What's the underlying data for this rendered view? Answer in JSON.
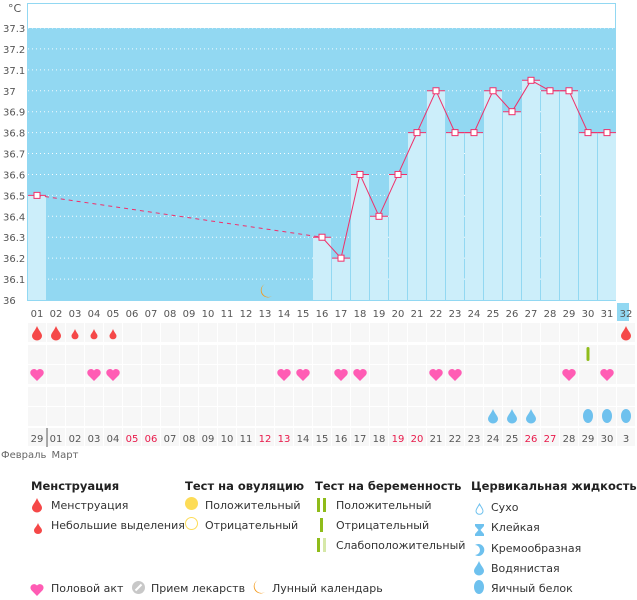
{
  "chart_data": {
    "type": "bar",
    "unit_label": "°C",
    "ylim": [
      36,
      37.3
    ],
    "yticks": [
      "36",
      "36.1",
      "36.2",
      "36.3",
      "36.4",
      "36.5",
      "36.6",
      "36.7",
      "36.8",
      "36.9",
      "37",
      "37.1",
      "37.2",
      "37.3"
    ],
    "cycle_days": [
      "01",
      "02",
      "03",
      "04",
      "05",
      "06",
      "07",
      "08",
      "09",
      "10",
      "11",
      "12",
      "13",
      "14",
      "15",
      "16",
      "17",
      "18",
      "19",
      "20",
      "21",
      "22",
      "23",
      "24",
      "25",
      "26",
      "27",
      "28",
      "29",
      "30",
      "31",
      "32"
    ],
    "temperatures": [
      36.5,
      null,
      null,
      null,
      null,
      null,
      null,
      null,
      null,
      null,
      null,
      null,
      null,
      null,
      null,
      36.3,
      36.2,
      36.6,
      36.4,
      36.6,
      36.8,
      37.0,
      36.8,
      36.8,
      37.0,
      36.9,
      37.05,
      37.0,
      37.0,
      36.8,
      36.8,
      null
    ],
    "calendar_dates": [
      "29",
      "01",
      "02",
      "03",
      "04",
      "05",
      "06",
      "07",
      "08",
      "09",
      "10",
      "11",
      "12",
      "13",
      "14",
      "15",
      "16",
      "17",
      "18",
      "19",
      "20",
      "21",
      "22",
      "23",
      "24",
      "25",
      "26",
      "27",
      "28",
      "29",
      "30",
      "3"
    ],
    "weekend_dates_idx": [
      5,
      6,
      12,
      13,
      19,
      20,
      26,
      27
    ],
    "months": [
      "Февраль",
      "Март"
    ],
    "menstruation": [
      "heavy",
      "heavy",
      "light",
      "light",
      "light",
      null,
      null,
      null,
      null,
      null,
      null,
      null,
      null,
      null,
      null,
      null,
      null,
      null,
      null,
      null,
      null,
      null,
      null,
      null,
      null,
      null,
      null,
      null,
      null,
      null,
      null,
      "heavy"
    ],
    "pregnancy_test_negative_days": [
      30
    ],
    "intercourse_days": [
      1,
      4,
      5,
      14,
      15,
      17,
      18,
      22,
      23,
      29,
      31
    ],
    "moon_days": [
      13
    ],
    "cervical_fluid": {
      "watery": [
        25,
        26,
        27
      ],
      "egg_white": [
        30,
        31,
        32
      ]
    },
    "grid": true,
    "colors": {
      "background": "#92d8f2",
      "bar": "#cceefa",
      "line": "#f0306a",
      "today": "#92d8f2",
      "menstruation": "#f54848",
      "heart": "#ff5cb4",
      "fluid": "#6ec1ee",
      "test": "#8fbc1a",
      "weekend": "#e8194a",
      "moon": "#f39a1c"
    }
  },
  "legend": {
    "menstruation": {
      "title": "Менструация",
      "items": [
        "Менструация",
        "Небольшие выделения"
      ]
    },
    "ovulation": {
      "title": "Тест на овуляцию",
      "items": [
        "Положительный",
        "Отрицательный"
      ]
    },
    "pregnancy": {
      "title": "Тест на беременность",
      "items": [
        "Положительный",
        "Отрицательный",
        "Слабоположительный"
      ]
    },
    "fluid": {
      "title": "Цервикальная жидкость",
      "items": [
        "Сухо",
        "Клейкая",
        "Кремообразная",
        "Водянистая",
        "Яичный белок"
      ]
    },
    "other": [
      "Половой акт",
      "Прием лекарств",
      "Лунный календарь"
    ]
  }
}
